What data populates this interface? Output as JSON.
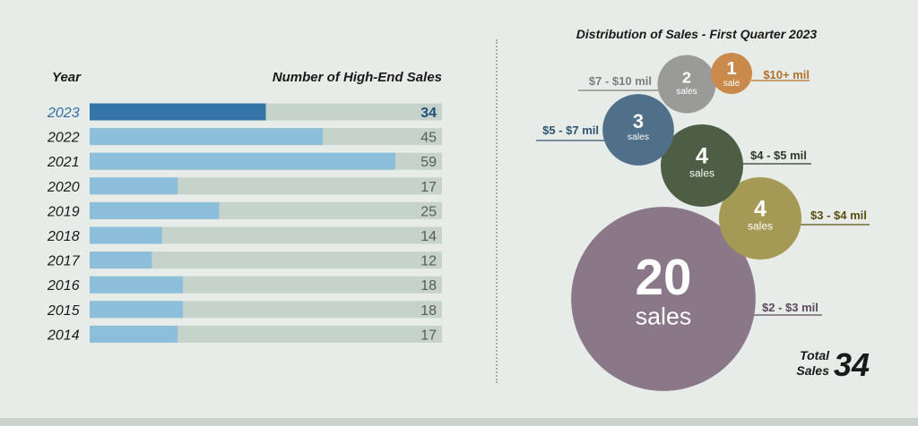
{
  "bar_chart": {
    "year_header": "Year",
    "value_header": "Number of High-End Sales"
  },
  "bubble_chart": {
    "title": "Distribution of Sales - First Quarter 2023",
    "total_label_line1": "Total",
    "total_label_line2": "Sales",
    "total_value": "34"
  },
  "colors": {
    "background": "#e8ece9",
    "track": "#c6d3cb",
    "bar_current": "#3474a6",
    "bar_past": "#8ebfda",
    "text_dark": "#1a1a1a",
    "highlight_text": "#2f6fa3",
    "gray_text": "#5a5a5a"
  },
  "chart_data": [
    {
      "type": "bar",
      "orientation": "horizontal",
      "categories": [
        "2023",
        "2022",
        "2021",
        "2020",
        "2019",
        "2018",
        "2017",
        "2016",
        "2015",
        "2014"
      ],
      "values": [
        34,
        45,
        59,
        17,
        25,
        14,
        12,
        18,
        18,
        17
      ],
      "xlabel": "Number of High-End Sales",
      "ylabel": "Year",
      "xlim": [
        0,
        68
      ],
      "highlight_category": "2023"
    },
    {
      "type": "bubble",
      "title": "Distribution of Sales - First Quarter 2023",
      "categories": [
        "$10+ mil",
        "$7 - $10 mil",
        "$5 - $7 mil",
        "$4 - $5 mil",
        "$3 - $4 mil",
        "$2 - $3 mil"
      ],
      "values": [
        1,
        2,
        3,
        4,
        4,
        20
      ],
      "unit_labels": [
        "sale",
        "sales",
        "sales",
        "sales",
        "sales",
        "sales"
      ],
      "colors": [
        "#c98a4b",
        "#9a9b99",
        "#4f7088",
        "#4d5e45",
        "#a59a55",
        "#8a7889"
      ],
      "label_colors": [
        "#b0702a",
        "#7e7e7e",
        "#2f5670",
        "#2d3a28",
        "#5a4d10",
        "#5a4a5a"
      ],
      "total": 34
    }
  ]
}
